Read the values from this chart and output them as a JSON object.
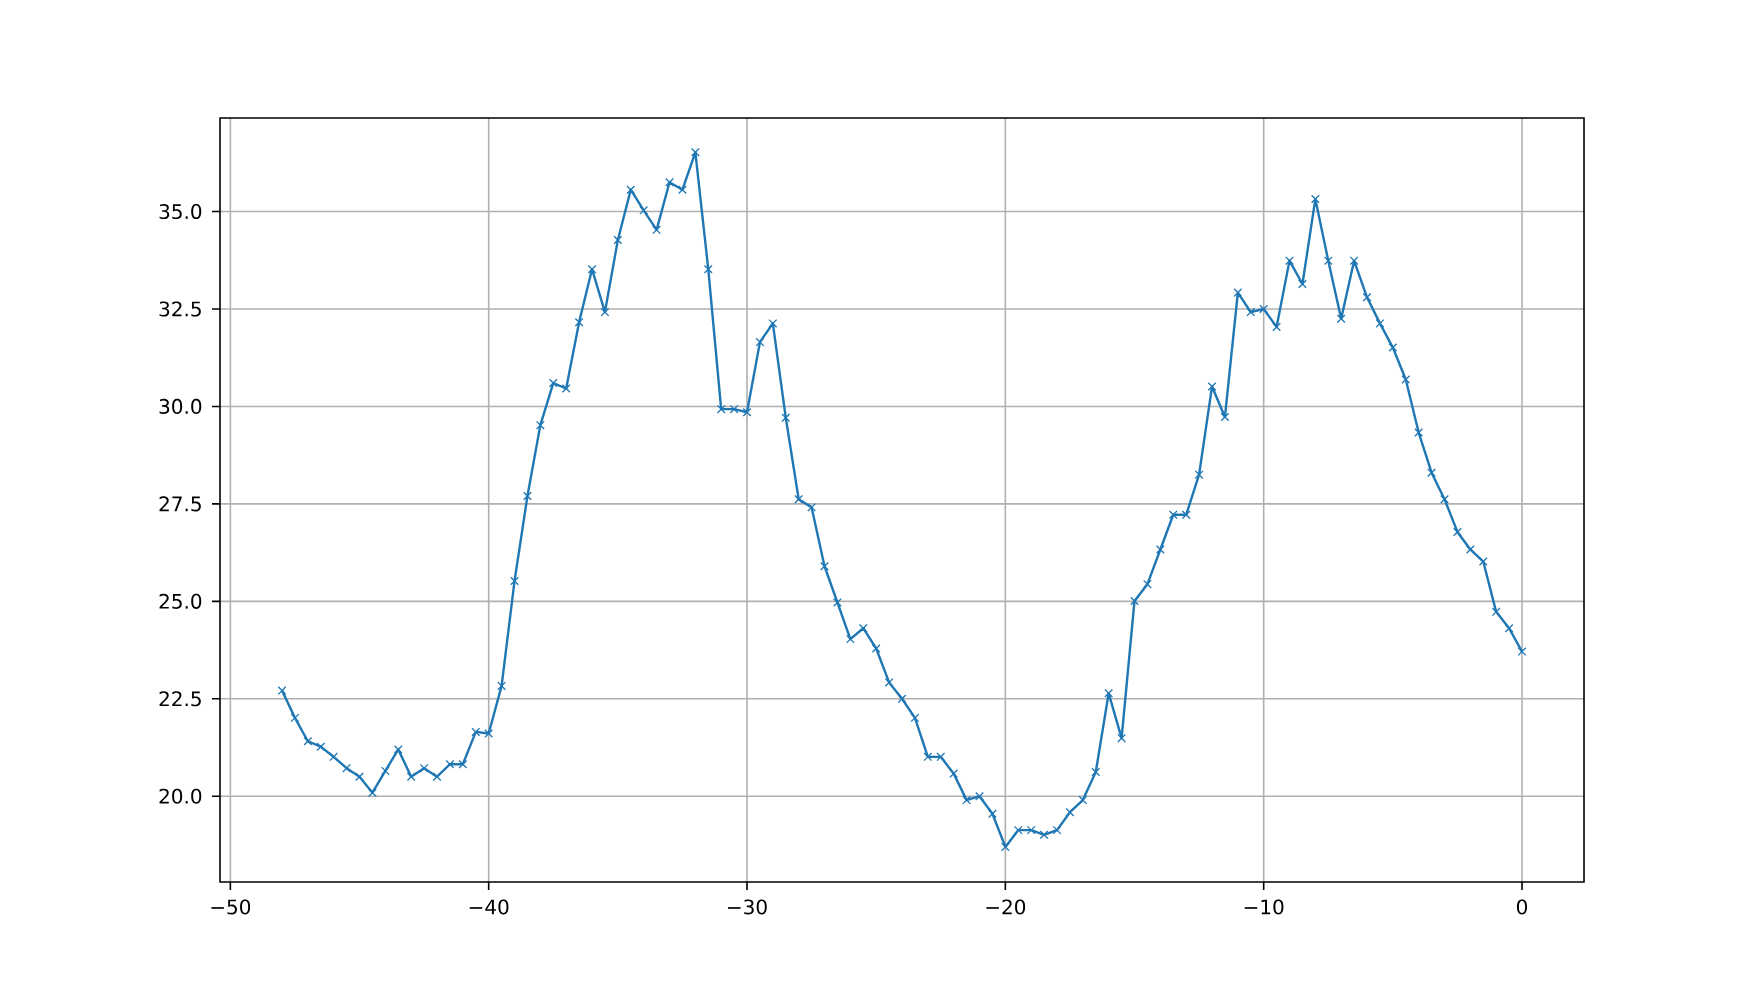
{
  "chart_data": {
    "type": "line",
    "x": [
      -48,
      -47.5,
      -47,
      -46.5,
      -46,
      -45.5,
      -45,
      -44.5,
      -44,
      -43.5,
      -43,
      -42.5,
      -42,
      -41.5,
      -41,
      -40.5,
      -40,
      -39.5,
      -39,
      -38.5,
      -38,
      -37.5,
      -37,
      -36.5,
      -36,
      -35.5,
      -35,
      -34.5,
      -34,
      -33.5,
      -33,
      -32.5,
      -32,
      -31.5,
      -31,
      -30.5,
      -30,
      -29.5,
      -29,
      -28.5,
      -28,
      -27.5,
      -27,
      -26.5,
      -26,
      -25.5,
      -25,
      -24.5,
      -24,
      -23.5,
      -23,
      -22.5,
      -22,
      -21.5,
      -21,
      -20.5,
      -20,
      -19.5,
      -19,
      -18.5,
      -18,
      -17.5,
      -17,
      -16.5,
      -16,
      -15.5,
      -15,
      -14.5,
      -14,
      -13.5,
      -13,
      -12.5,
      -12,
      -11.5,
      -11,
      -10.5,
      -10,
      -9.5,
      -9,
      -8.5,
      -8,
      -7.5,
      -7,
      -6.5,
      -6,
      -5.5,
      -5,
      -4.5,
      -4,
      -3.5,
      -3,
      -2.5,
      -2,
      -1.5,
      -1,
      -0.5,
      0
    ],
    "series": [
      {
        "color": "#1f77b4",
        "values": [
          22.71,
          22.01,
          21.41,
          21.27,
          21.01,
          20.72,
          20.5,
          20.09,
          20.65,
          21.2,
          20.5,
          20.72,
          20.5,
          20.82,
          20.82,
          21.65,
          21.61,
          22.83,
          25.52,
          27.7,
          29.52,
          30.6,
          30.46,
          32.16,
          33.52,
          32.42,
          34.27,
          35.56,
          35.03,
          34.53,
          35.75,
          35.56,
          36.52,
          33.52,
          29.93,
          29.93,
          29.85,
          31.65,
          32.13,
          29.71,
          27.62,
          27.41,
          25.9,
          24.97,
          24.03,
          24.31,
          23.79,
          22.92,
          22.5,
          22.01,
          21.01,
          21.01,
          20.58,
          19.9,
          20.0,
          19.55,
          18.7,
          19.13,
          19.13,
          19.01,
          19.13,
          19.59,
          19.9,
          20.62,
          22.64,
          21.49,
          25.01,
          25.44,
          26.33,
          27.22,
          27.22,
          28.25,
          30.51,
          29.73,
          32.92,
          32.42,
          32.5,
          32.04,
          33.74,
          33.14,
          35.32,
          33.74,
          32.25,
          33.74,
          32.8,
          32.13,
          31.51,
          30.69,
          29.33,
          28.3,
          27.62,
          26.78,
          26.33,
          26.02,
          24.73,
          24.31,
          23.71
        ]
      }
    ],
    "xlim": [
      -50.4,
      2.4
    ],
    "ylim": [
      17.8,
      37.4
    ],
    "xticks": [
      {
        "value": -50,
        "label": "−50"
      },
      {
        "value": -40,
        "label": "−40"
      },
      {
        "value": -30,
        "label": "−30"
      },
      {
        "value": -20,
        "label": "−20"
      },
      {
        "value": -10,
        "label": "−10"
      },
      0
    ],
    "yticks": [
      {
        "value": 20,
        "label": "20.0"
      },
      {
        "value": 22.5,
        "label": "22.5"
      },
      {
        "value": 25,
        "label": "25.0"
      },
      {
        "value": 27.5,
        "label": "27.5"
      },
      {
        "value": 30,
        "label": "30.0"
      },
      {
        "value": 32.5,
        "label": "32.5"
      },
      {
        "value": 35,
        "label": "35.0"
      }
    ],
    "grid": true,
    "marker": "cross",
    "line_style": "solid"
  }
}
